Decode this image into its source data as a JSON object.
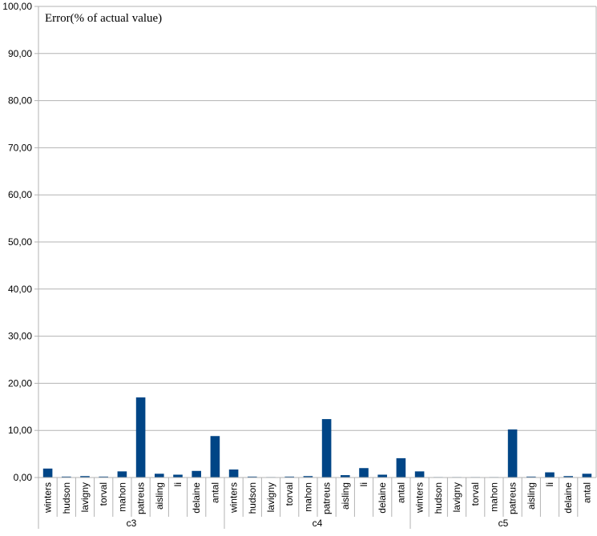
{
  "chart_data": {
    "type": "bar",
    "title": "Error(% of actual value)",
    "xlabel": "",
    "ylabel": "",
    "ylim": [
      0,
      100
    ],
    "yticks": [
      "0,00",
      "10,00",
      "20,00",
      "30,00",
      "40,00",
      "50,00",
      "60,00",
      "70,00",
      "80,00",
      "90,00",
      "100,00"
    ],
    "grid": true,
    "legend": "none",
    "bar_color": "#004586",
    "groups": [
      {
        "name": "c3",
        "categories": [
          "winters",
          "hudson",
          "lavigny",
          "torval",
          "mahon",
          "patreus",
          "aisling",
          "li",
          "delaine",
          "antal"
        ],
        "values": [
          1.9,
          0.2,
          0.3,
          0.2,
          1.3,
          17.0,
          0.8,
          0.6,
          1.4,
          8.8
        ]
      },
      {
        "name": "c4",
        "categories": [
          "winters",
          "hudson",
          "lavigny",
          "torval",
          "mahon",
          "patreus",
          "aisling",
          "li",
          "delaine",
          "antal"
        ],
        "values": [
          1.7,
          0.2,
          0.1,
          0.2,
          0.3,
          12.4,
          0.5,
          2.0,
          0.6,
          4.1
        ]
      },
      {
        "name": "c5",
        "categories": [
          "winters",
          "hudson",
          "lavigny",
          "torval",
          "mahon",
          "patreus",
          "aisling",
          "li",
          "delaine",
          "antal"
        ],
        "values": [
          1.3,
          0.1,
          0.1,
          0.1,
          0.1,
          10.2,
          0.2,
          1.1,
          0.3,
          0.8
        ]
      }
    ]
  }
}
